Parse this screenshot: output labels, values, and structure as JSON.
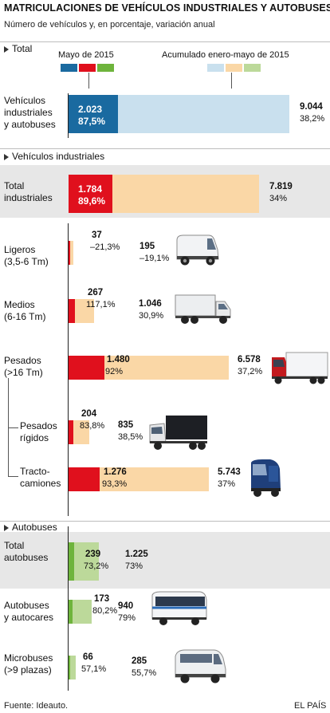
{
  "title": "MATRICULACIONES DE VEHÍCULOS INDUSTRIALES Y AUTOBUSES",
  "subtitle": "Número de vehículos y, en porcentaje, variación anual",
  "legend": {
    "monthly_label": "Mayo de 2015",
    "cumulative_label": "Acumulado enero-mayo de 2015"
  },
  "sections": {
    "total": "Total",
    "industrial": "Vehículos industriales",
    "buses": "Autobuses"
  },
  "colors": {
    "total_month": "#1a6aa0",
    "total_cum": "#c9e0ee",
    "industrial_month": "#e0101d",
    "industrial_cum": "#fad7a6",
    "bus_month": "#6eb43c",
    "bus_cum": "#bcd99a"
  },
  "chart_data": {
    "type": "bar",
    "title": "MATRICULACIONES DE VEHÍCULOS INDUSTRIALES Y AUTOBUSES",
    "series": [
      {
        "name": "Mayo de 2015"
      },
      {
        "name": "Acumulado enero-mayo de 2015"
      }
    ],
    "rows": [
      {
        "key": "total_all",
        "group": "total",
        "label": "Vehículos\nindustriales\ny autobuses",
        "month_value": 2023,
        "month_text": "2.023",
        "month_change": "87,5%",
        "cum_value": 9044,
        "cum_text": "9.044",
        "cum_change": "38,2%"
      },
      {
        "key": "total_ind",
        "group": "industrial",
        "label": "Total\nindustriales",
        "month_value": 1784,
        "month_text": "1.784",
        "month_change": "89,6%",
        "cum_value": 7819,
        "cum_text": "7.819",
        "cum_change": "34%"
      },
      {
        "key": "ligeros",
        "group": "industrial",
        "label": "Ligeros\n(3,5-6 Tm)",
        "month_value": 37,
        "month_text": "37",
        "month_change": "–21,3%",
        "cum_value": 195,
        "cum_text": "195",
        "cum_change": "–19,1%"
      },
      {
        "key": "medios",
        "group": "industrial",
        "label": "Medios\n(6-16 Tm)",
        "month_value": 267,
        "month_text": "267",
        "month_change": "117,1%",
        "cum_value": 1046,
        "cum_text": "1.046",
        "cum_change": "30,9%"
      },
      {
        "key": "pesados",
        "group": "industrial",
        "label": "Pesados\n(>16 Tm)",
        "month_value": 1480,
        "month_text": "1.480",
        "month_change": "92%",
        "cum_value": 6578,
        "cum_text": "6.578",
        "cum_change": "37,2%"
      },
      {
        "key": "rigidos",
        "group": "industrial",
        "label": "Pesados\nrígidos",
        "month_value": 204,
        "month_text": "204",
        "month_change": "83,8%",
        "cum_value": 835,
        "cum_text": "835",
        "cum_change": "38,5%"
      },
      {
        "key": "tracto",
        "group": "industrial",
        "label": "Tracto-\ncamiones",
        "month_value": 1276,
        "month_text": "1.276",
        "month_change": "93,3%",
        "cum_value": 5743,
        "cum_text": "5.743",
        "cum_change": "37%"
      },
      {
        "key": "total_bus",
        "group": "bus",
        "label": "Total\nautobuses",
        "month_value": 239,
        "month_text": "239",
        "month_change": "73,2%",
        "cum_value": 1225,
        "cum_text": "1.225",
        "cum_change": "73%"
      },
      {
        "key": "autobuses",
        "group": "bus",
        "label": "Autobuses\ny autocares",
        "month_value": 173,
        "month_text": "173",
        "month_change": "80,2%",
        "cum_value": 940,
        "cum_text": "940",
        "cum_change": "79%"
      },
      {
        "key": "micro",
        "group": "bus",
        "label": "Microbuses\n(>9 plazas)",
        "month_value": 66,
        "month_text": "66",
        "month_change": "57,1%",
        "cum_value": 285,
        "cum_text": "285",
        "cum_change": "55,7%"
      }
    ]
  },
  "footer": {
    "source": "Fuente: Ideauto.",
    "publisher": "EL PAÍS"
  }
}
